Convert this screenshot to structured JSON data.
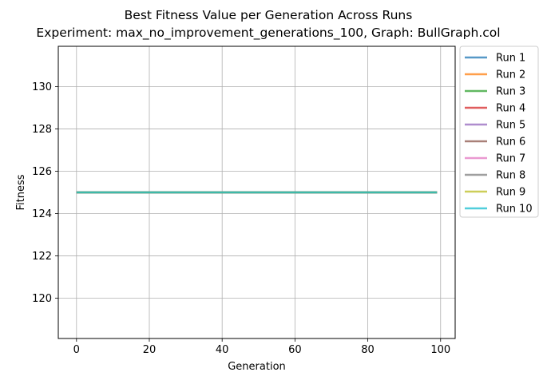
{
  "chart_data": {
    "type": "line",
    "title": "Best Fitness Value per Generation Across Runs",
    "subtitle": "Experiment: max_no_improvement_generations_100, Graph: BullGraph.col",
    "xlabel": "Generation",
    "ylabel": "Fitness",
    "xlim": [
      -5,
      104
    ],
    "ylim": [
      118.1,
      131.9
    ],
    "xticks": [
      0,
      20,
      40,
      60,
      80,
      100
    ],
    "yticks": [
      120,
      122,
      124,
      126,
      128,
      130
    ],
    "grid": true,
    "legend_position": "outside-right",
    "x_range": [
      0,
      99
    ],
    "series": [
      {
        "name": "Run 1",
        "value": 125,
        "color": "#1f77b4"
      },
      {
        "name": "Run 2",
        "value": 125,
        "color": "#ff7f0e"
      },
      {
        "name": "Run 3",
        "value": 125,
        "color": "#2ca02c"
      },
      {
        "name": "Run 4",
        "value": 125,
        "color": "#d62728"
      },
      {
        "name": "Run 5",
        "value": 125,
        "color": "#9467bd"
      },
      {
        "name": "Run 6",
        "value": 125,
        "color": "#8c564b"
      },
      {
        "name": "Run 7",
        "value": 125,
        "color": "#e377c2"
      },
      {
        "name": "Run 8",
        "value": 125,
        "color": "#7f7f7f"
      },
      {
        "name": "Run 9",
        "value": 125,
        "color": "#bcbd22"
      },
      {
        "name": "Run 10",
        "value": 125,
        "color": "#17becf"
      }
    ]
  }
}
